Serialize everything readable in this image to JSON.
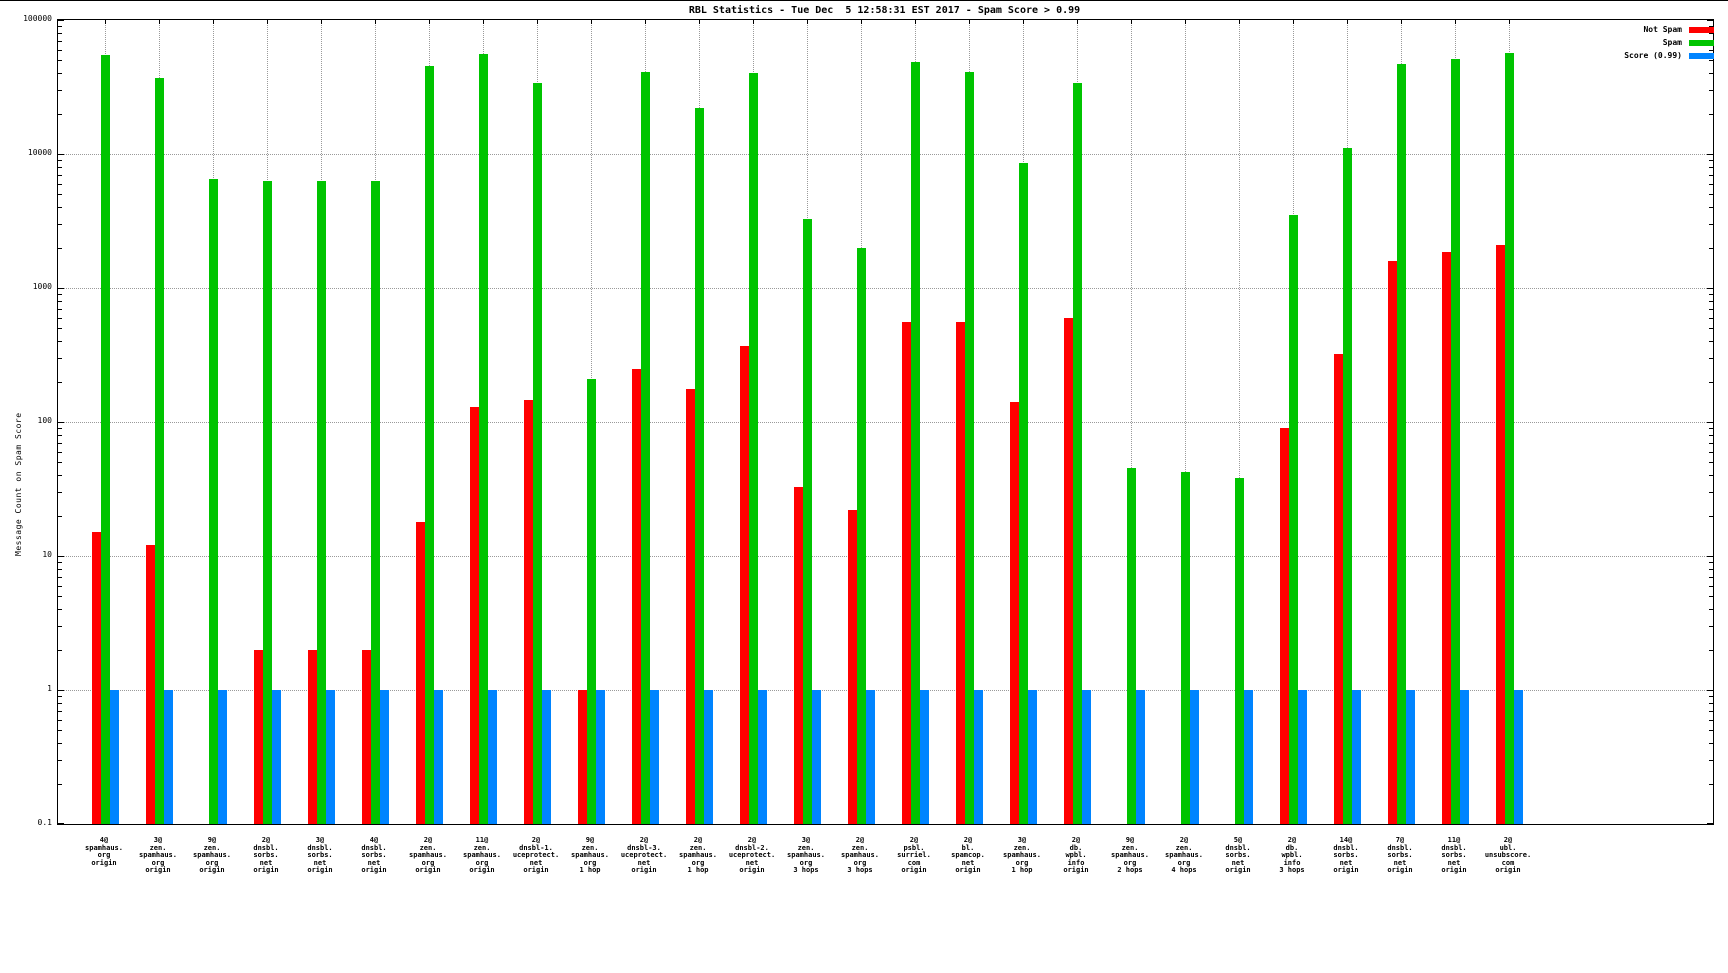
{
  "title": "RBL Statistics - Tue Dec  5 12:58:31 EST 2017 - Spam Score > 0.99",
  "ylabel": "Message Count on Spam Score",
  "legend": [
    {
      "label": "Not Spam",
      "color": "#ff0000"
    },
    {
      "label": "Spam",
      "color": "#00c400"
    },
    {
      "label": "Score (0.99)",
      "color": "#0084ff"
    }
  ],
  "colors": {
    "not_spam": "#ff0000",
    "spam": "#00c400",
    "score": "#0084ff",
    "grid": "#9a9a9a"
  },
  "chart_data": {
    "type": "bar",
    "log_y": true,
    "grid": true,
    "ylim": [
      0.1,
      100000
    ],
    "ytick_labels": [
      "100000",
      "10000",
      "1000",
      "100",
      "10",
      "1",
      "0.1"
    ],
    "ytick_values": [
      100000,
      10000,
      1000,
      100,
      10,
      1,
      0.1
    ],
    "legend_position": "top-right",
    "categories": [
      [
        "4@",
        "spamhaus.",
        "org",
        "origin"
      ],
      [
        "3@",
        "zen.",
        "spamhaus.",
        "org",
        "origin"
      ],
      [
        "9@",
        "zen.",
        "spamhaus.",
        "org",
        "origin"
      ],
      [
        "2@",
        "dnsbl.",
        "sorbs.",
        "net",
        "origin"
      ],
      [
        "3@",
        "dnsbl.",
        "sorbs.",
        "net",
        "origin"
      ],
      [
        "4@",
        "dnsbl.",
        "sorbs.",
        "net",
        "origin"
      ],
      [
        "2@",
        "zen.",
        "spamhaus.",
        "org",
        "origin"
      ],
      [
        "11@",
        "zen.",
        "spamhaus.",
        "org",
        "origin"
      ],
      [
        "2@",
        "dnsbl-1.",
        "uceprotect.",
        "net",
        "origin"
      ],
      [
        "9@",
        "zen.",
        "spamhaus.",
        "org",
        "1 hop"
      ],
      [
        "2@",
        "dnsbl-3.",
        "uceprotect.",
        "net",
        "origin"
      ],
      [
        "2@",
        "zen.",
        "spamhaus.",
        "org",
        "1 hop"
      ],
      [
        "2@",
        "dnsbl-2.",
        "uceprotect.",
        "net",
        "origin"
      ],
      [
        "3@",
        "zen.",
        "spamhaus.",
        "org",
        "3 hops"
      ],
      [
        "2@",
        "zen.",
        "spamhaus.",
        "org",
        "3 hops"
      ],
      [
        "2@",
        "psbl.",
        "surriel.",
        "com",
        "origin"
      ],
      [
        "2@",
        "bl.",
        "spamcop.",
        "net",
        "origin"
      ],
      [
        "3@",
        "zen.",
        "spamhaus.",
        "org",
        "1 hop"
      ],
      [
        "2@",
        "db.",
        "wpbl.",
        "info",
        "origin"
      ],
      [
        "9@",
        "zen.",
        "spamhaus.",
        "org",
        "2 hops"
      ],
      [
        "2@",
        "zen.",
        "spamhaus.",
        "org",
        "4 hops"
      ],
      [
        "5@",
        "dnsbl.",
        "sorbs.",
        "net",
        "origin"
      ],
      [
        "2@",
        "db.",
        "wpbl.",
        "info",
        "3 hops"
      ],
      [
        "14@",
        "dnsbl.",
        "sorbs.",
        "net",
        "origin"
      ],
      [
        "7@",
        "dnsbl.",
        "sorbs.",
        "net",
        "origin"
      ],
      [
        "11@",
        "dnsbl.",
        "sorbs.",
        "net",
        "origin"
      ],
      [
        "2@",
        "ubl.",
        "unsubscore.",
        "com",
        "origin"
      ]
    ],
    "series": [
      {
        "name": "Not Spam",
        "color": "#ff0000",
        "values": [
          15,
          12,
          null,
          2,
          2,
          2,
          18,
          130,
          145,
          1,
          250,
          175,
          370,
          33,
          22,
          560,
          560,
          140,
          600,
          null,
          null,
          null,
          90,
          320,
          1600,
          1850,
          2100
        ]
      },
      {
        "name": "Spam",
        "color": "#00c400",
        "values": [
          55000,
          37000,
          6500,
          6300,
          6300,
          6300,
          45000,
          56000,
          34000,
          210,
          41000,
          22000,
          40000,
          3300,
          2000,
          49000,
          41000,
          8500,
          34000,
          45,
          42,
          38,
          3500,
          11000,
          47000,
          51000,
          57000
        ]
      },
      {
        "name": "Score (0.99)",
        "color": "#0084ff",
        "values": [
          1,
          1,
          1,
          1,
          1,
          1,
          1,
          1,
          1,
          1,
          1,
          1,
          1,
          1,
          1,
          1,
          1,
          1,
          1,
          1,
          1,
          1,
          1,
          1,
          1,
          1,
          1
        ]
      }
    ]
  }
}
